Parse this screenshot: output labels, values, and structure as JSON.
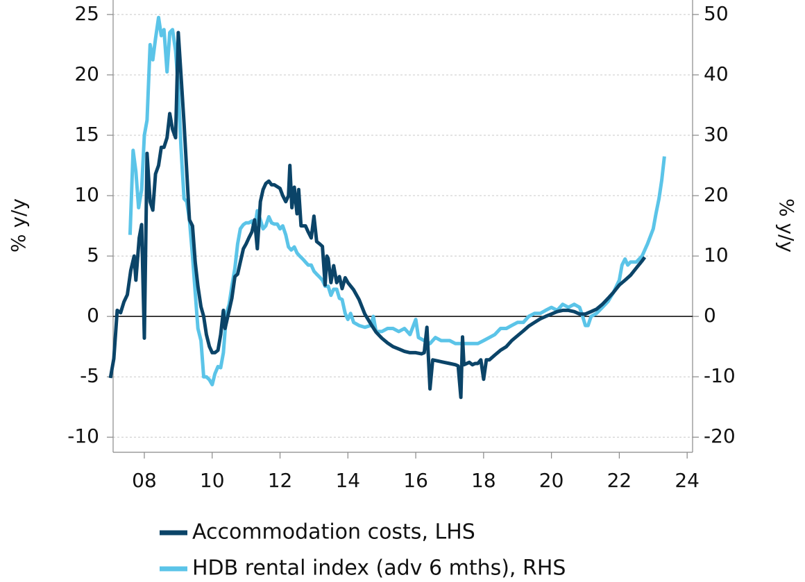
{
  "chart_data": {
    "type": "line",
    "y_label": "% y/y",
    "y2_label": "% y/y",
    "xlim": [
      7.08,
      24.16
    ],
    "xticks": [
      {
        "value": 8,
        "label": "08"
      },
      10,
      12,
      14,
      16,
      18,
      20,
      22,
      24
    ],
    "ylim": [
      -11.25,
      26.2
    ],
    "yticks": [
      -10,
      -5,
      0,
      5,
      10,
      15,
      20,
      25
    ],
    "y2lim": [
      -22.5,
      52.4
    ],
    "y2ticks": [
      -20,
      -10,
      0,
      10,
      20,
      30,
      40,
      50
    ],
    "grid": true,
    "legend": "bottom",
    "series": [
      {
        "name": "Accommodation costs, LHS",
        "color": "#0b4468",
        "x": [
          7.0,
          7.1,
          7.2,
          7.3,
          7.4,
          7.5,
          7.6,
          7.7,
          7.75,
          7.85,
          7.92,
          8.0,
          8.08,
          8.17,
          8.25,
          8.33,
          8.42,
          8.5,
          8.58,
          8.67,
          8.75,
          8.83,
          8.92,
          9.0,
          9.08,
          9.17,
          9.25,
          9.33,
          9.42,
          9.5,
          9.58,
          9.67,
          9.75,
          9.83,
          9.92,
          10.0,
          10.08,
          10.17,
          10.25,
          10.33,
          10.38,
          10.5,
          10.58,
          10.67,
          10.75,
          10.83,
          10.92,
          11.0,
          11.08,
          11.17,
          11.25,
          11.33,
          11.42,
          11.5,
          11.58,
          11.67,
          11.75,
          11.83,
          12.0,
          12.08,
          12.17,
          12.25,
          12.29,
          12.35,
          12.42,
          12.5,
          12.55,
          12.62,
          12.75,
          12.83,
          12.92,
          13.0,
          13.08,
          13.17,
          13.25,
          13.33,
          13.38,
          13.42,
          13.5,
          13.58,
          13.67,
          13.75,
          13.83,
          13.92,
          14.0,
          14.17,
          14.33,
          14.5,
          14.67,
          14.83,
          15.0,
          15.17,
          15.33,
          15.5,
          15.67,
          15.83,
          16.0,
          16.17,
          16.25,
          16.33,
          16.42,
          16.5,
          16.67,
          16.83,
          17.0,
          17.17,
          17.25,
          17.33,
          17.38,
          17.42,
          17.58,
          17.67,
          17.75,
          17.83,
          17.92,
          18.0,
          18.08,
          18.17,
          18.33,
          18.5,
          18.67,
          18.83,
          19.0,
          19.17,
          19.33,
          19.5,
          19.67,
          19.83,
          20.0,
          20.17,
          20.33,
          20.5,
          20.67,
          20.83,
          21.0,
          21.17,
          21.33,
          21.5,
          21.67,
          21.83,
          22.0,
          22.17,
          22.33,
          22.5,
          22.67,
          22.75
        ],
        "values": [
          -5.1,
          -3.5,
          0.5,
          0.3,
          1.2,
          1.8,
          3.8,
          5.0,
          3.0,
          6.5,
          7.6,
          -1.8,
          13.5,
          9.5,
          8.8,
          11.8,
          12.5,
          14.0,
          14.0,
          14.8,
          16.8,
          15.5,
          14.8,
          23.5,
          20.0,
          16.0,
          12.0,
          8.0,
          7.5,
          4.5,
          2.5,
          0.8,
          0.0,
          -1.5,
          -2.5,
          -3.0,
          -3.0,
          -2.8,
          -1.5,
          0.5,
          -1.0,
          0.5,
          1.5,
          3.3,
          3.5,
          4.5,
          5.6,
          6.0,
          6.5,
          7.0,
          8.0,
          5.6,
          9.5,
          10.5,
          11.0,
          11.2,
          10.9,
          10.9,
          10.6,
          10.0,
          9.5,
          10.0,
          12.5,
          9.0,
          10.7,
          8.5,
          10.5,
          7.5,
          7.5,
          7.0,
          6.5,
          8.3,
          6.2,
          6.0,
          5.8,
          2.6,
          5.0,
          4.8,
          2.8,
          4.2,
          2.8,
          3.3,
          2.3,
          3.2,
          2.8,
          2.2,
          1.4,
          0.2,
          -0.6,
          -1.3,
          -1.8,
          -2.2,
          -2.5,
          -2.7,
          -2.9,
          -3.0,
          -3.0,
          -3.1,
          -3.0,
          -0.9,
          -6.0,
          -3.6,
          -3.7,
          -3.8,
          -3.9,
          -4.0,
          -4.1,
          -6.7,
          -1.7,
          -4.0,
          -3.8,
          -4.0,
          -3.9,
          -3.9,
          -3.6,
          -5.2,
          -3.6,
          -3.6,
          -3.2,
          -2.8,
          -2.5,
          -2.0,
          -1.6,
          -1.2,
          -0.8,
          -0.5,
          -0.2,
          0.0,
          0.2,
          0.4,
          0.5,
          0.5,
          0.4,
          0.2,
          0.2,
          0.4,
          0.6,
          1.0,
          1.5,
          2.0,
          2.6,
          3.0,
          3.4,
          4.0,
          4.6,
          4.9
        ]
      },
      {
        "name": "HDB rental index (adv 6 mths), RHS",
        "color": "#5bc4e8",
        "axis": "y2",
        "x": [
          7.58,
          7.67,
          7.75,
          7.83,
          7.92,
          8.0,
          8.08,
          8.17,
          8.25,
          8.33,
          8.42,
          8.5,
          8.58,
          8.67,
          8.75,
          8.83,
          8.92,
          9.0,
          9.08,
          9.17,
          9.25,
          9.33,
          9.42,
          9.5,
          9.58,
          9.67,
          9.75,
          9.83,
          9.92,
          10.0,
          10.08,
          10.17,
          10.25,
          10.33,
          10.42,
          10.5,
          10.58,
          10.67,
          10.75,
          10.83,
          10.92,
          11.0,
          11.08,
          11.17,
          11.25,
          11.33,
          11.42,
          11.5,
          11.58,
          11.67,
          11.75,
          11.83,
          11.92,
          12.0,
          12.08,
          12.17,
          12.25,
          12.33,
          12.42,
          12.5,
          12.58,
          12.67,
          12.75,
          12.83,
          12.92,
          13.0,
          13.08,
          13.17,
          13.25,
          13.33,
          13.42,
          13.5,
          13.58,
          13.67,
          13.75,
          13.83,
          13.92,
          14.0,
          14.08,
          14.17,
          14.33,
          14.5,
          14.67,
          14.75,
          14.83,
          15.0,
          15.17,
          15.33,
          15.5,
          15.67,
          15.83,
          16.0,
          16.08,
          16.25,
          16.42,
          16.58,
          16.75,
          17.0,
          17.17,
          17.33,
          17.5,
          17.67,
          17.83,
          18.0,
          18.17,
          18.33,
          18.5,
          18.67,
          18.83,
          19.0,
          19.17,
          19.33,
          19.5,
          19.67,
          19.83,
          20.0,
          20.17,
          20.33,
          20.5,
          20.67,
          20.83,
          20.92,
          21.0,
          21.08,
          21.17,
          21.33,
          21.5,
          21.67,
          21.83,
          22.0,
          22.08,
          22.17,
          22.25,
          22.33,
          22.5,
          22.67,
          22.83,
          23.0,
          23.08,
          23.17,
          23.25,
          23.33
        ],
        "values": [
          13.5,
          27.5,
          24.0,
          18.0,
          21.0,
          30.0,
          32.5,
          45.0,
          42.5,
          46.0,
          49.5,
          46.5,
          47.5,
          40.5,
          47.0,
          47.5,
          44.0,
          38.0,
          28.0,
          19.5,
          19.0,
          16.0,
          10.0,
          4.0,
          -2.0,
          -4.0,
          -10.0,
          -10.0,
          -10.5,
          -11.3,
          -9.5,
          -8.3,
          -8.5,
          -6.0,
          0.5,
          2.0,
          5.0,
          8.0,
          12.0,
          14.5,
          15.2,
          15.5,
          15.5,
          15.8,
          14.5,
          17.5,
          16.0,
          14.5,
          15.0,
          16.5,
          15.5,
          15.3,
          15.3,
          14.5,
          15.0,
          13.5,
          11.5,
          11.0,
          11.5,
          10.5,
          10.0,
          9.5,
          9.0,
          8.5,
          8.5,
          7.5,
          7.0,
          6.5,
          6.0,
          5.0,
          5.0,
          3.5,
          4.5,
          4.5,
          3.0,
          2.8,
          0.5,
          -0.5,
          0.5,
          -1.0,
          -1.5,
          -1.8,
          -1.5,
          0.0,
          -2.5,
          -2.5,
          -2.0,
          -2.0,
          -2.5,
          -2.0,
          -3.0,
          -0.5,
          -3.5,
          -4.0,
          -4.5,
          -3.5,
          -4.0,
          -4.0,
          -4.5,
          -4.5,
          -4.5,
          -4.5,
          -4.5,
          -4.0,
          -3.5,
          -3.0,
          -2.0,
          -2.0,
          -1.5,
          -1.0,
          -1.0,
          0.0,
          0.5,
          0.5,
          1.0,
          1.5,
          1.0,
          2.0,
          1.5,
          2.0,
          1.5,
          0.0,
          -1.5,
          -1.5,
          0.0,
          0.5,
          1.5,
          2.5,
          4.0,
          6.0,
          8.5,
          9.5,
          8.5,
          9.0,
          9.0,
          10.0,
          12.0,
          14.5,
          17.0,
          19.5,
          22.5,
          26.5
        ]
      }
    ]
  }
}
